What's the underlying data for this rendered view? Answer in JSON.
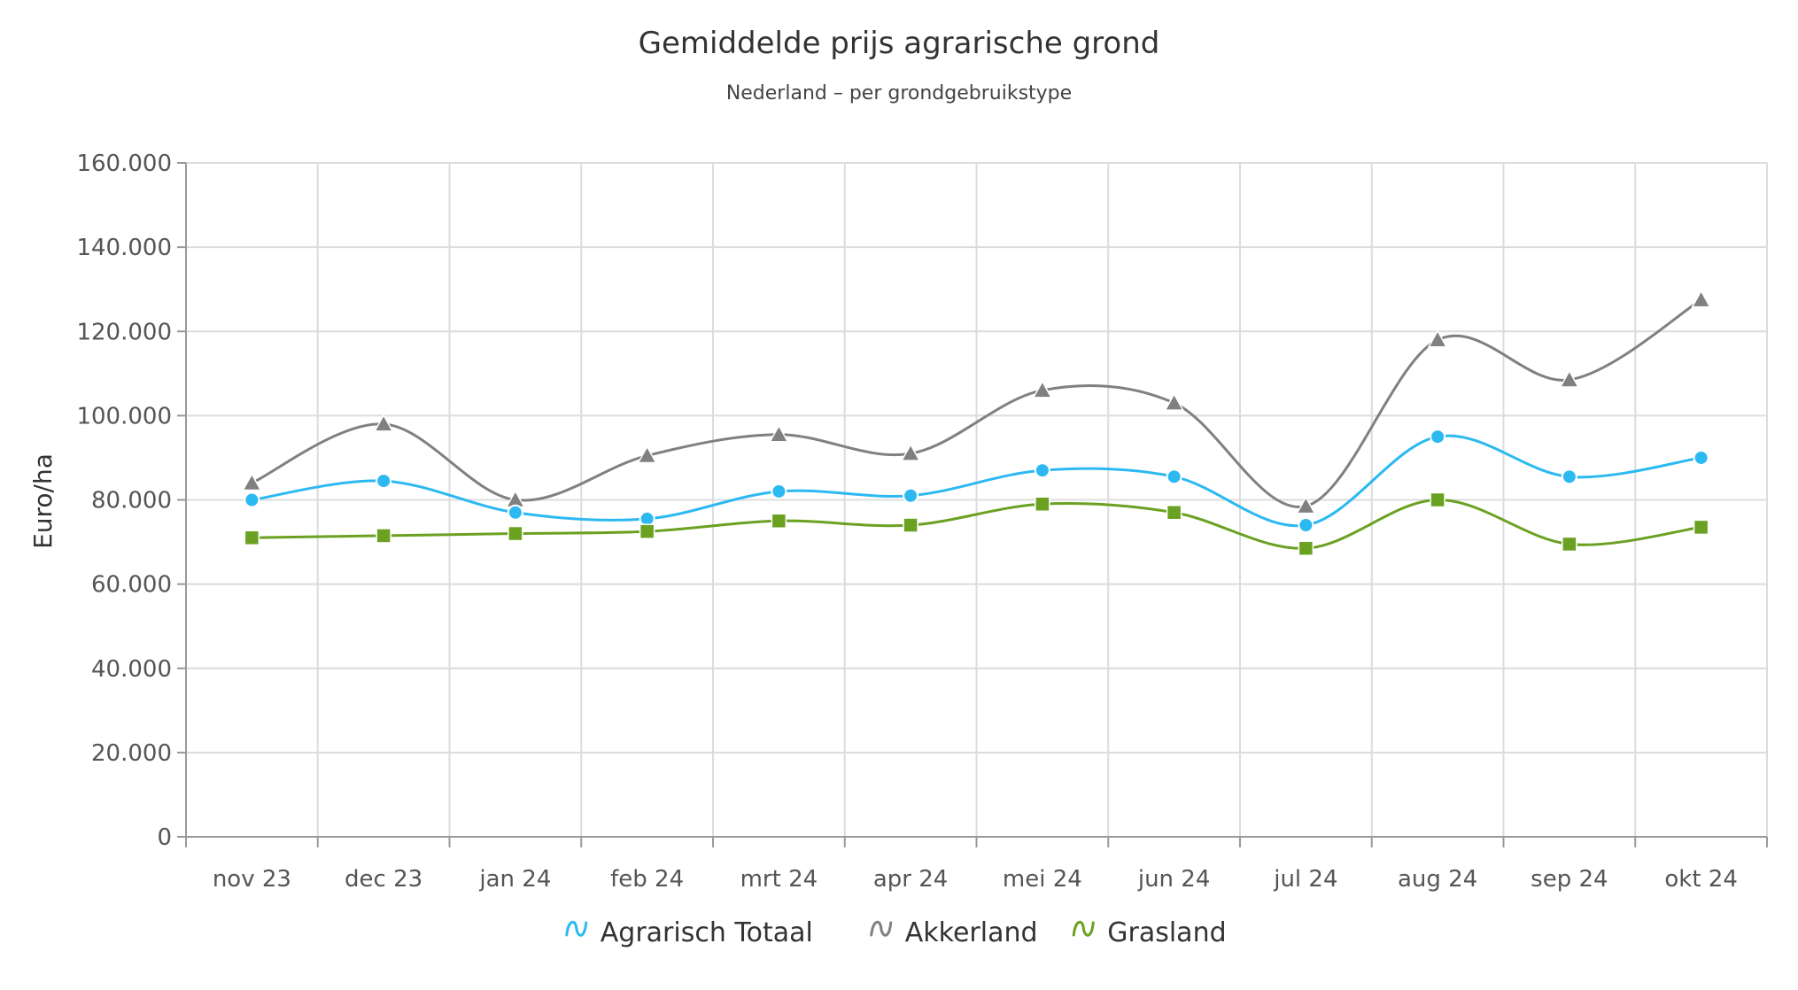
{
  "chart_data": {
    "type": "line",
    "title": "Gemiddelde prijs agrarische grond",
    "subtitle": "Nederland – per grondgebruikstype",
    "ylabel": "Euro/ha",
    "xlabel": "",
    "ylim": [
      0,
      160000
    ],
    "yticks": [
      "0",
      "20.000",
      "40.000",
      "60.000",
      "80.000",
      "100.000",
      "120.000",
      "140.000",
      "160.000"
    ],
    "ytick_values": [
      0,
      20000,
      40000,
      60000,
      80000,
      100000,
      120000,
      140000,
      160000
    ],
    "categories": [
      "nov 23",
      "dec 23",
      "jan 24",
      "feb 24",
      "mrt 24",
      "apr 24",
      "mei 24",
      "jun 24",
      "jul 24",
      "aug 24",
      "sep 24",
      "okt 24"
    ],
    "grid": true,
    "legend_position": "bottom",
    "series": [
      {
        "name": "Agrarisch Totaal",
        "color": "#2cb9f2",
        "marker": "circle",
        "values": [
          80000,
          84500,
          77000,
          75500,
          82000,
          81000,
          87000,
          85500,
          74000,
          95000,
          85500,
          90000
        ]
      },
      {
        "name": "Akkerland",
        "color": "#808080",
        "marker": "triangle",
        "values": [
          84000,
          98000,
          80000,
          90500,
          95500,
          91000,
          106000,
          103000,
          78500,
          118000,
          108500,
          127500
        ]
      },
      {
        "name": "Grasland",
        "color": "#6aa121",
        "marker": "square",
        "values": [
          71000,
          71500,
          72000,
          72500,
          75000,
          74000,
          79000,
          77000,
          68500,
          80000,
          69500,
          73500
        ]
      }
    ]
  }
}
